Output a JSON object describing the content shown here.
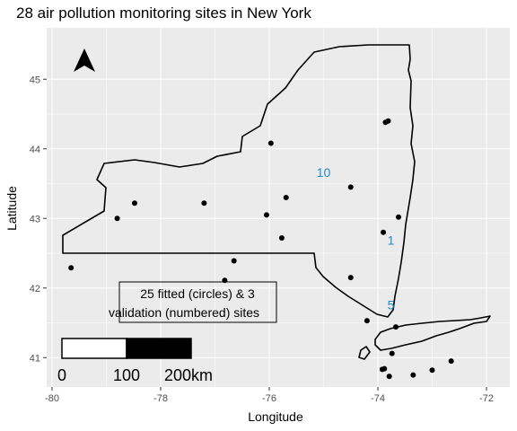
{
  "map": {
    "title": "28 air pollution monitoring sites in New York",
    "x_axis_title": "Longitude",
    "y_axis_title": "Latitude",
    "x_ticks": [
      -80,
      -78,
      -76,
      -74,
      -72
    ],
    "y_ticks": [
      41,
      42,
      43,
      44,
      45
    ],
    "x_tick_labels": [
      "-80",
      "-78",
      "-76",
      "-74",
      "-72"
    ],
    "y_tick_labels": [
      "41",
      "42",
      "43",
      "44",
      "45"
    ],
    "annotation_line1": "25 fitted (circles) & 3",
    "annotation_line2": "validation (numbered) sites",
    "scale_labels": [
      "0",
      "100",
      "200km"
    ],
    "north_arrow_icon": "north-arrow-icon",
    "colors": {
      "panel": "#ebebeb",
      "grid": "#ffffff",
      "points": "#000000",
      "numbered": "#1f8ad6"
    },
    "fitted_sites": [
      {
        "lon": -79.65,
        "lat": 42.29
      },
      {
        "lon": -78.8,
        "lat": 43.0
      },
      {
        "lon": -78.48,
        "lat": 43.22
      },
      {
        "lon": -77.2,
        "lat": 43.22
      },
      {
        "lon": -76.82,
        "lat": 42.11
      },
      {
        "lon": -76.65,
        "lat": 42.39
      },
      {
        "lon": -76.05,
        "lat": 43.05
      },
      {
        "lon": -75.97,
        "lat": 44.08
      },
      {
        "lon": -75.77,
        "lat": 42.72
      },
      {
        "lon": -75.69,
        "lat": 43.3
      },
      {
        "lon": -74.5,
        "lat": 43.45
      },
      {
        "lon": -74.5,
        "lat": 42.15
      },
      {
        "lon": -74.2,
        "lat": 41.53
      },
      {
        "lon": -73.9,
        "lat": 42.8
      },
      {
        "lon": -73.86,
        "lat": 44.38
      },
      {
        "lon": -73.81,
        "lat": 44.4
      },
      {
        "lon": -73.62,
        "lat": 43.02
      },
      {
        "lon": -73.67,
        "lat": 41.44
      },
      {
        "lon": -73.74,
        "lat": 41.06
      },
      {
        "lon": -73.88,
        "lat": 40.84
      },
      {
        "lon": -73.92,
        "lat": 40.83
      },
      {
        "lon": -73.79,
        "lat": 40.73
      },
      {
        "lon": -73.35,
        "lat": 40.75
      },
      {
        "lon": -73.0,
        "lat": 40.82
      },
      {
        "lon": -72.65,
        "lat": 40.95
      }
    ],
    "validation_sites": [
      {
        "label": "10",
        "lon": -75.0,
        "lat": 43.66
      },
      {
        "label": "1",
        "lon": -73.76,
        "lat": 42.69
      },
      {
        "label": "5",
        "lon": -73.76,
        "lat": 41.76
      }
    ]
  }
}
